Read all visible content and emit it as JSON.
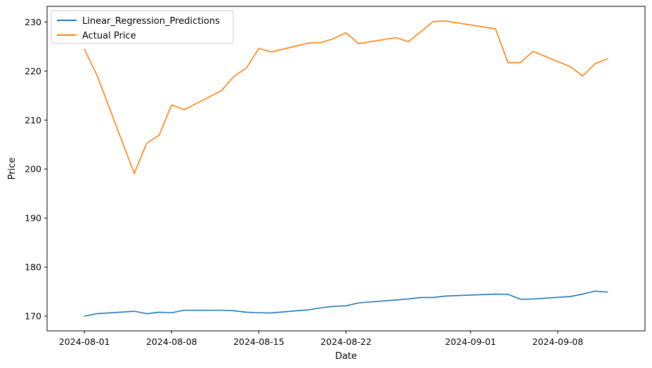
{
  "chart_data": {
    "type": "line",
    "xlabel": "Date",
    "ylabel": "Price",
    "xlim": [
      "2024-07-29",
      "2024-09-15"
    ],
    "ylim": [
      167,
      233.2
    ],
    "xticks": [
      "2024-08-01",
      "2024-08-08",
      "2024-08-15",
      "2024-08-22",
      "2024-09-01",
      "2024-09-08"
    ],
    "yticks": [
      170,
      180,
      190,
      200,
      210,
      220,
      230
    ],
    "grid": false,
    "legend": {
      "placement": "top-left"
    },
    "series": [
      {
        "name": "Linear_Regression_Predictions",
        "color": "#1f77b4",
        "points": [
          [
            "2024-08-01",
            170.0
          ],
          [
            "2024-08-02",
            170.5
          ],
          [
            "2024-08-05",
            171.0
          ],
          [
            "2024-08-06",
            170.5
          ],
          [
            "2024-08-07",
            170.8
          ],
          [
            "2024-08-08",
            170.7
          ],
          [
            "2024-08-09",
            171.2
          ],
          [
            "2024-08-12",
            171.2
          ],
          [
            "2024-08-13",
            171.1
          ],
          [
            "2024-08-14",
            170.8
          ],
          [
            "2024-08-15",
            170.7
          ],
          [
            "2024-08-16",
            170.65
          ],
          [
            "2024-08-19",
            171.3
          ],
          [
            "2024-08-20",
            171.7
          ],
          [
            "2024-08-21",
            172.0
          ],
          [
            "2024-08-22",
            172.1
          ],
          [
            "2024-08-23",
            172.7
          ],
          [
            "2024-08-26",
            173.3
          ],
          [
            "2024-08-27",
            173.5
          ],
          [
            "2024-08-28",
            173.8
          ],
          [
            "2024-08-29",
            173.8
          ],
          [
            "2024-08-30",
            174.1
          ],
          [
            "2024-09-03",
            174.5
          ],
          [
            "2024-09-04",
            174.45
          ],
          [
            "2024-09-05",
            173.45
          ],
          [
            "2024-09-06",
            173.5
          ],
          [
            "2024-09-09",
            174.0
          ],
          [
            "2024-09-10",
            174.5
          ],
          [
            "2024-09-11",
            175.1
          ],
          [
            "2024-09-12",
            174.9
          ]
        ]
      },
      {
        "name": "Actual Price",
        "color": "#ff7f0e",
        "points": [
          [
            "2024-08-01",
            224.4
          ],
          [
            "2024-08-02",
            219.2
          ],
          [
            "2024-08-05",
            199.1
          ],
          [
            "2024-08-06",
            205.3
          ],
          [
            "2024-08-07",
            206.9
          ],
          [
            "2024-08-08",
            213.1
          ],
          [
            "2024-08-09",
            212.1
          ],
          [
            "2024-08-12",
            216.0
          ],
          [
            "2024-08-13",
            218.9
          ],
          [
            "2024-08-14",
            220.6
          ],
          [
            "2024-08-15",
            224.6
          ],
          [
            "2024-08-16",
            223.9
          ],
          [
            "2024-08-19",
            225.7
          ],
          [
            "2024-08-20",
            225.8
          ],
          [
            "2024-08-21",
            226.6
          ],
          [
            "2024-08-22",
            227.8
          ],
          [
            "2024-08-23",
            225.6
          ],
          [
            "2024-08-26",
            226.8
          ],
          [
            "2024-08-27",
            226.0
          ],
          [
            "2024-08-28",
            228.0
          ],
          [
            "2024-08-29",
            230.1
          ],
          [
            "2024-08-30",
            230.2
          ],
          [
            "2024-09-03",
            228.6
          ],
          [
            "2024-09-04",
            221.7
          ],
          [
            "2024-09-05",
            221.7
          ],
          [
            "2024-09-06",
            224.0
          ],
          [
            "2024-09-09",
            220.9
          ],
          [
            "2024-09-10",
            219.0
          ],
          [
            "2024-09-11",
            221.5
          ],
          [
            "2024-09-12",
            222.5
          ]
        ]
      }
    ]
  }
}
